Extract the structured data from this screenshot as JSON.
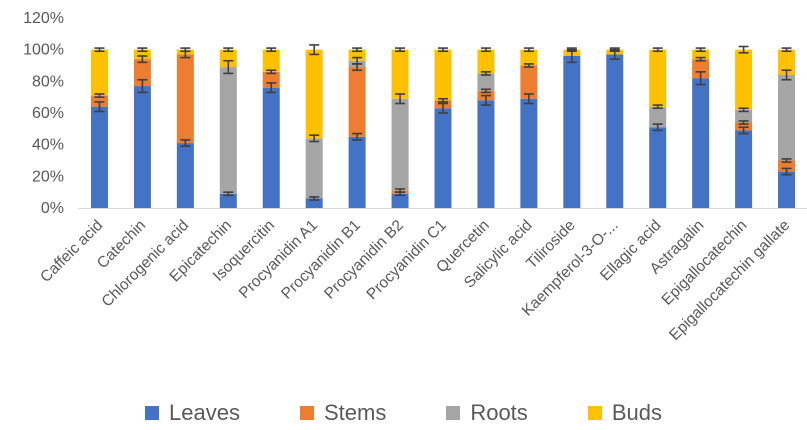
{
  "chart_data": {
    "type": "bar",
    "stacked": true,
    "percent": true,
    "categories": [
      "Caffeic acid",
      "Catechin",
      "Chlorogenic acid",
      "Epicatechin",
      "Isoquercitin",
      "Procyanidin A1",
      "Procyanidin B1",
      "Procyanidin B2",
      "Procyanidin C1",
      "Quercetin",
      "Salicylic acid",
      "Tiliroside",
      "Kaempferol-3-O-...",
      "Ellagic acid",
      "Astragalin",
      "Epigallocatechin",
      "Epigallocatechin gallate"
    ],
    "series": [
      {
        "name": "Leaves",
        "color": "#4472C4",
        "values": [
          64,
          77,
          41,
          9,
          76,
          6,
          45,
          9,
          63,
          68,
          69,
          96,
          97,
          51,
          82,
          49,
          23
        ]
      },
      {
        "name": "Stems",
        "color": "#ED7D31",
        "values": [
          7,
          17,
          56,
          0,
          10,
          0,
          44,
          2,
          5,
          6,
          21,
          0,
          0,
          0,
          12,
          5,
          7
        ]
      },
      {
        "name": "Roots",
        "color": "#A5A5A5",
        "values": [
          0,
          0,
          0,
          80,
          0,
          38,
          4,
          58,
          0,
          11,
          0,
          0,
          0,
          13,
          0,
          8,
          54
        ]
      },
      {
        "name": "Buds",
        "color": "#FFC000",
        "values": [
          29,
          6,
          3,
          11,
          14,
          56,
          7,
          31,
          32,
          15,
          10,
          4,
          3,
          36,
          6,
          38,
          16
        ]
      }
    ],
    "error_bars": [
      [
        3,
        4,
        2,
        1,
        3,
        1,
        2,
        1,
        3,
        3,
        3,
        4,
        3,
        2,
        4,
        2,
        2
      ],
      [
        1,
        2,
        2,
        0,
        1,
        0,
        2,
        1,
        1,
        1,
        1,
        0,
        0,
        0,
        1,
        1,
        1
      ],
      [
        0,
        0,
        0,
        4,
        0,
        2,
        2,
        3,
        0,
        1,
        0,
        0,
        0,
        1,
        0,
        1,
        3
      ],
      [
        1,
        1,
        1,
        1,
        1,
        3,
        1,
        1,
        1,
        1,
        1,
        1,
        1,
        1,
        1,
        2,
        1
      ]
    ],
    "y_ticks": [
      "0%",
      "20%",
      "40%",
      "60%",
      "80%",
      "100%",
      "120%"
    ],
    "ylim": [
      0,
      120
    ],
    "grid": false,
    "legend_position": "bottom",
    "title": "",
    "xlabel": "",
    "ylabel": ""
  }
}
